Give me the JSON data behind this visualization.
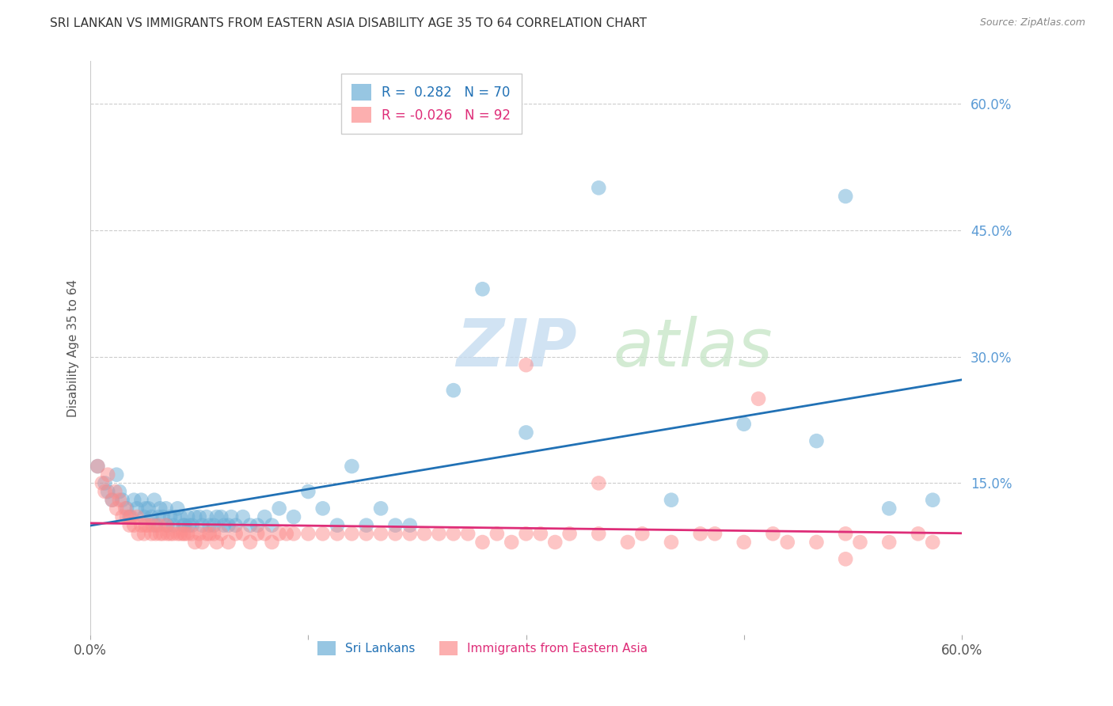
{
  "title": "SRI LANKAN VS IMMIGRANTS FROM EASTERN ASIA DISABILITY AGE 35 TO 64 CORRELATION CHART",
  "source": "Source: ZipAtlas.com",
  "ylabel": "Disability Age 35 to 64",
  "right_ytick_vals": [
    0.6,
    0.45,
    0.3,
    0.15
  ],
  "xlim": [
    0.0,
    0.6
  ],
  "ylim": [
    -0.03,
    0.65
  ],
  "blue_color": "#6baed6",
  "pink_color": "#fc8d8d",
  "blue_line_color": "#2171b5",
  "pink_line_color": "#de2d78",
  "title_color": "#333333",
  "sri_lankans_x": [
    0.005,
    0.01,
    0.012,
    0.015,
    0.018,
    0.02,
    0.022,
    0.025,
    0.027,
    0.03,
    0.032,
    0.035,
    0.037,
    0.038,
    0.04,
    0.042,
    0.044,
    0.045,
    0.047,
    0.048,
    0.05,
    0.052,
    0.053,
    0.055,
    0.057,
    0.058,
    0.06,
    0.062,
    0.064,
    0.065,
    0.067,
    0.068,
    0.07,
    0.072,
    0.075,
    0.077,
    0.08,
    0.082,
    0.085,
    0.087,
    0.09,
    0.092,
    0.095,
    0.097,
    0.1,
    0.105,
    0.11,
    0.115,
    0.12,
    0.125,
    0.13,
    0.14,
    0.15,
    0.16,
    0.17,
    0.18,
    0.19,
    0.2,
    0.21,
    0.22,
    0.25,
    0.27,
    0.3,
    0.35,
    0.4,
    0.45,
    0.5,
    0.55,
    0.58,
    0.52
  ],
  "sri_lankans_y": [
    0.17,
    0.15,
    0.14,
    0.13,
    0.16,
    0.14,
    0.13,
    0.12,
    0.11,
    0.13,
    0.12,
    0.13,
    0.11,
    0.12,
    0.12,
    0.11,
    0.13,
    0.1,
    0.11,
    0.12,
    0.11,
    0.12,
    0.1,
    0.11,
    0.1,
    0.11,
    0.12,
    0.11,
    0.1,
    0.1,
    0.11,
    0.1,
    0.1,
    0.11,
    0.11,
    0.1,
    0.11,
    0.1,
    0.1,
    0.11,
    0.11,
    0.1,
    0.1,
    0.11,
    0.1,
    0.11,
    0.1,
    0.1,
    0.11,
    0.1,
    0.12,
    0.11,
    0.14,
    0.12,
    0.1,
    0.17,
    0.1,
    0.12,
    0.1,
    0.1,
    0.26,
    0.38,
    0.21,
    0.5,
    0.13,
    0.22,
    0.2,
    0.12,
    0.13,
    0.49
  ],
  "eastern_asia_x": [
    0.005,
    0.008,
    0.01,
    0.012,
    0.015,
    0.017,
    0.018,
    0.02,
    0.022,
    0.024,
    0.025,
    0.027,
    0.028,
    0.03,
    0.032,
    0.033,
    0.035,
    0.037,
    0.038,
    0.04,
    0.042,
    0.043,
    0.045,
    0.047,
    0.048,
    0.05,
    0.052,
    0.053,
    0.055,
    0.057,
    0.06,
    0.062,
    0.064,
    0.065,
    0.067,
    0.07,
    0.072,
    0.075,
    0.077,
    0.08,
    0.082,
    0.085,
    0.087,
    0.09,
    0.095,
    0.1,
    0.105,
    0.11,
    0.115,
    0.12,
    0.125,
    0.13,
    0.135,
    0.14,
    0.15,
    0.16,
    0.17,
    0.18,
    0.19,
    0.2,
    0.21,
    0.22,
    0.23,
    0.24,
    0.25,
    0.26,
    0.27,
    0.28,
    0.29,
    0.3,
    0.31,
    0.32,
    0.33,
    0.35,
    0.37,
    0.38,
    0.4,
    0.42,
    0.43,
    0.45,
    0.47,
    0.48,
    0.5,
    0.52,
    0.53,
    0.55,
    0.57,
    0.58,
    0.3,
    0.35,
    0.46,
    0.52
  ],
  "eastern_asia_y": [
    0.17,
    0.15,
    0.14,
    0.16,
    0.13,
    0.14,
    0.12,
    0.13,
    0.11,
    0.12,
    0.11,
    0.1,
    0.11,
    0.1,
    0.11,
    0.09,
    0.1,
    0.09,
    0.1,
    0.1,
    0.09,
    0.1,
    0.09,
    0.1,
    0.09,
    0.09,
    0.1,
    0.09,
    0.09,
    0.09,
    0.09,
    0.09,
    0.09,
    0.09,
    0.09,
    0.09,
    0.08,
    0.09,
    0.08,
    0.09,
    0.09,
    0.09,
    0.08,
    0.09,
    0.08,
    0.09,
    0.09,
    0.08,
    0.09,
    0.09,
    0.08,
    0.09,
    0.09,
    0.09,
    0.09,
    0.09,
    0.09,
    0.09,
    0.09,
    0.09,
    0.09,
    0.09,
    0.09,
    0.09,
    0.09,
    0.09,
    0.08,
    0.09,
    0.08,
    0.09,
    0.09,
    0.08,
    0.09,
    0.09,
    0.08,
    0.09,
    0.08,
    0.09,
    0.09,
    0.08,
    0.09,
    0.08,
    0.08,
    0.09,
    0.08,
    0.08,
    0.09,
    0.08,
    0.29,
    0.15,
    0.25,
    0.06
  ]
}
